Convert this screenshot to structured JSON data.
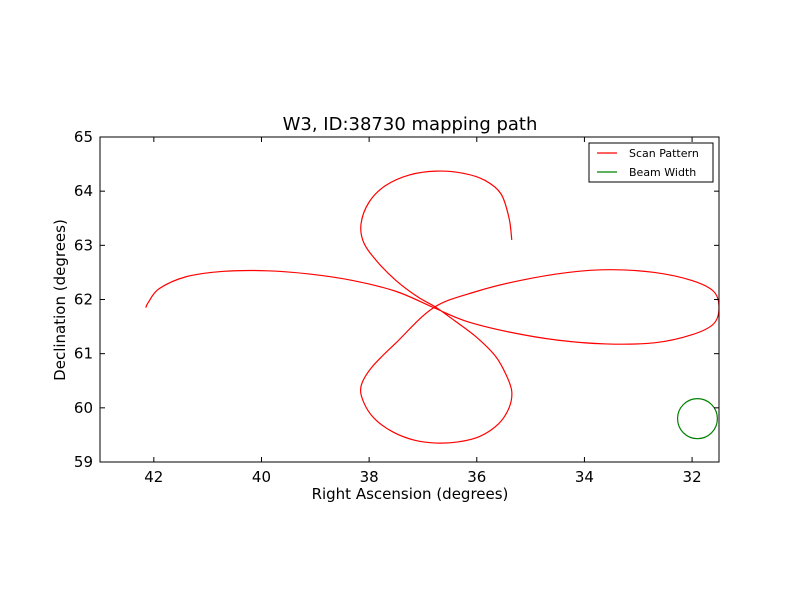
{
  "chart_data": {
    "type": "line",
    "title": "W3, ID:38730 mapping path",
    "xlabel": "Right Ascension (degrees)",
    "ylabel": "Declination (degrees)",
    "xlim": [
      43.0,
      31.5
    ],
    "ylim": [
      59,
      65
    ],
    "x_inverted": true,
    "xticks": [
      "42",
      "40",
      "38",
      "36",
      "34",
      "32"
    ],
    "xtick_values": [
      42,
      40,
      38,
      36,
      34,
      32
    ],
    "yticks": [
      "59",
      "60",
      "61",
      "62",
      "63",
      "64",
      "65"
    ],
    "ytick_values": [
      59,
      60,
      61,
      62,
      63,
      64,
      65
    ],
    "grid": false,
    "legend_position": "top-right",
    "series": [
      {
        "name": "Scan Pattern",
        "color": "#ff0000",
        "x": [
          35.35,
          35.4,
          35.55,
          35.85,
          36.25,
          36.75,
          37.25,
          37.7,
          38.0,
          38.15,
          38.1,
          37.85,
          37.5,
          37.1,
          36.75,
          36.4,
          36.0,
          35.65,
          35.45,
          35.35,
          35.4,
          35.6,
          35.95,
          36.35,
          36.75,
          37.15,
          37.55,
          37.9,
          38.1,
          38.15,
          37.95,
          37.5,
          36.8,
          36.0,
          35.2,
          34.3,
          33.5,
          32.7,
          32.0,
          31.6,
          31.5,
          31.6,
          32.0,
          32.7,
          33.6,
          34.5,
          35.4,
          36.2,
          36.8,
          37.5,
          38.3,
          39.1,
          39.9,
          40.7,
          41.4,
          41.9,
          42.1,
          42.15
        ],
        "y": [
          63.1,
          63.5,
          63.95,
          64.2,
          64.33,
          64.37,
          64.3,
          64.1,
          63.8,
          63.4,
          63.05,
          62.7,
          62.35,
          62.05,
          61.85,
          61.6,
          61.3,
          60.95,
          60.6,
          60.3,
          60.0,
          59.7,
          59.47,
          59.37,
          59.35,
          59.4,
          59.55,
          59.8,
          60.1,
          60.4,
          60.75,
          61.2,
          61.85,
          62.15,
          62.35,
          62.5,
          62.55,
          62.5,
          62.35,
          62.15,
          61.85,
          61.55,
          61.35,
          61.2,
          61.18,
          61.25,
          61.4,
          61.6,
          61.85,
          62.15,
          62.35,
          62.47,
          62.53,
          62.52,
          62.42,
          62.2,
          61.95,
          61.85
        ]
      },
      {
        "name": "Beam Width",
        "color": "#008000",
        "center": [
          31.9,
          59.8
        ],
        "radius_deg": 0.37
      }
    ]
  }
}
